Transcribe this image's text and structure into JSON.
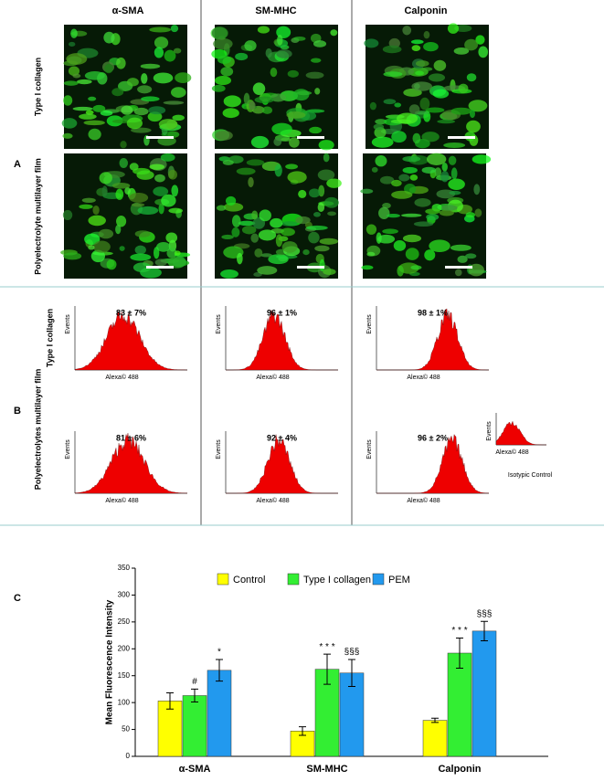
{
  "panel_a": {
    "label": "A",
    "columns": [
      "α-SMA",
      "SM-MHC",
      "Calponin"
    ],
    "rows": [
      "Type I collagen",
      "Polyelectrolyte multilayer film"
    ]
  },
  "panel_b": {
    "label": "B",
    "rows": [
      "Type I collagen",
      "Polyelectrolytes multilayer film"
    ],
    "axis_y": "Events",
    "axis_x": "Alexa© 488",
    "percentages": [
      [
        "83 ± 7%",
        "96 ± 1%",
        "98 ± 1%"
      ],
      [
        "81 ± 6%",
        "92 ± 4%",
        "96 ± 2%"
      ]
    ],
    "control": "Isotypic Control"
  },
  "chart_data": {
    "type": "bar",
    "label": "C",
    "ylabel": "Mean Fluorescence Intensity",
    "categories": [
      "α-SMA",
      "SM-MHC",
      "Calponin"
    ],
    "series": [
      {
        "name": "Control",
        "color": "#ffff00",
        "values": [
          103,
          47,
          67
        ],
        "errors": [
          15,
          8,
          4
        ],
        "annotations": [
          null,
          null,
          null
        ]
      },
      {
        "name": "Type I collagen",
        "color": "#33ee33",
        "values": [
          113,
          162,
          192
        ],
        "errors": [
          12,
          28,
          28
        ],
        "annotations": [
          "#",
          "* * *",
          "* * *"
        ]
      },
      {
        "name": "PEM",
        "color": "#2299ee",
        "values": [
          160,
          155,
          233
        ],
        "errors": [
          20,
          25,
          18
        ],
        "annotations": [
          "*",
          "§§§",
          "§§§"
        ]
      }
    ],
    "ylim": [
      0,
      350
    ],
    "yticks": [
      0,
      50,
      100,
      150,
      200,
      250,
      300,
      350
    ]
  }
}
